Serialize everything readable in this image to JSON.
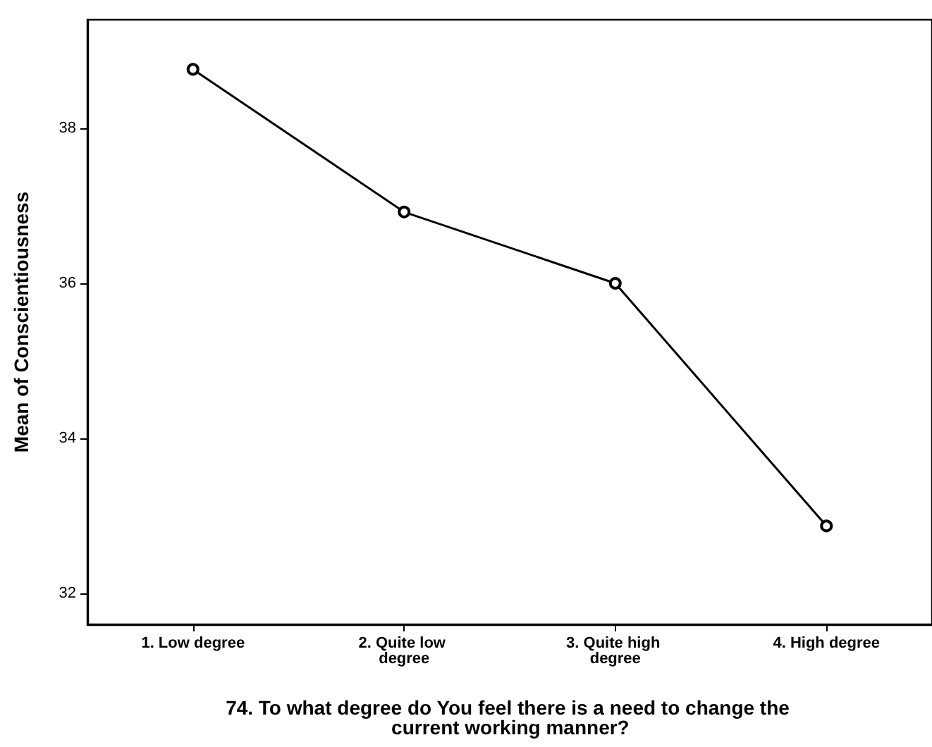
{
  "chart_data": {
    "type": "line",
    "xlabel": "74. To what degree do You feel there is a need to change the current working manner?",
    "ylabel": "Mean of Conscientiousness",
    "categories": [
      "1. Low degree",
      "2. Quite low degree",
      "3. Quite high degree",
      "4. High degree"
    ],
    "series": [
      {
        "color": "#000000",
        "values": [
          38.76,
          36.92,
          36.0,
          32.87
        ]
      }
    ],
    "ylim": [
      31.6,
      39.4
    ],
    "yticks": [
      32,
      34,
      36,
      38
    ],
    "grid": false,
    "marker": "circle",
    "line_style": "solid"
  }
}
